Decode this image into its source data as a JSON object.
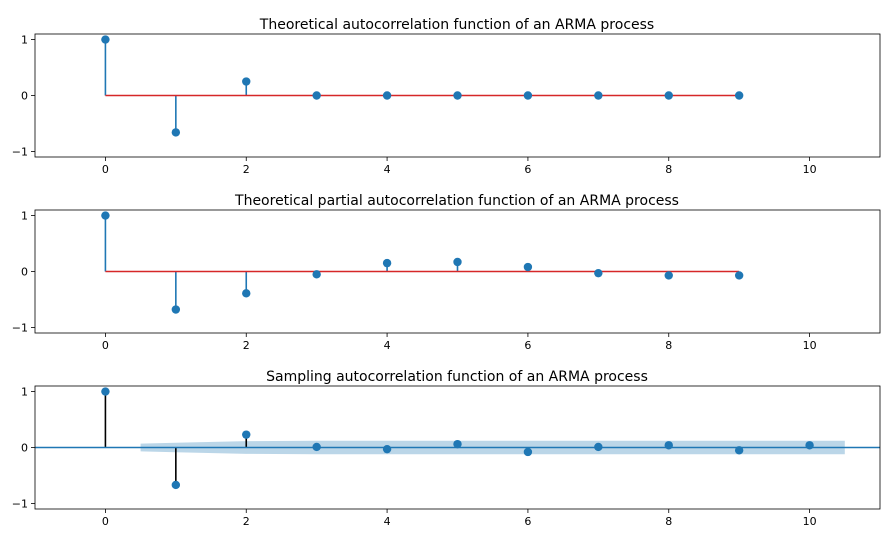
{
  "chart_data": [
    {
      "type": "stem",
      "title": "Theoretical autocorrelation function of an ARMA process",
      "xlabel": "",
      "ylabel": "",
      "xlim": [
        -1,
        11
      ],
      "ylim": [
        -1.1,
        1.1
      ],
      "xticks": [
        0,
        2,
        4,
        6,
        8,
        10
      ],
      "yticks": [
        1,
        0,
        -1
      ],
      "ytick_labels": [
        "1",
        "0",
        "−1"
      ],
      "grid": false,
      "x": [
        0,
        1,
        2,
        3,
        4,
        5,
        6,
        7,
        8,
        9
      ],
      "values": [
        1.0,
        -0.66,
        0.25,
        0.0,
        0.0,
        0.0,
        0.0,
        0.0,
        0.0,
        0.0
      ],
      "baseline": {
        "from": 0,
        "to": 9,
        "color": "#d62728"
      },
      "marker_color": "#1f77b4",
      "stem_color": "#1f77b4"
    },
    {
      "type": "stem",
      "title": "Theoretical partial autocorrelation function of an ARMA process",
      "xlabel": "",
      "ylabel": "",
      "xlim": [
        -1,
        11
      ],
      "ylim": [
        -1.1,
        1.1
      ],
      "xticks": [
        0,
        2,
        4,
        6,
        8,
        10
      ],
      "yticks": [
        1,
        0,
        -1
      ],
      "ytick_labels": [
        "1",
        "0",
        "−1"
      ],
      "grid": false,
      "x": [
        0,
        1,
        2,
        3,
        4,
        5,
        6,
        7,
        8,
        9
      ],
      "values": [
        1.0,
        -0.68,
        -0.39,
        -0.05,
        0.15,
        0.17,
        0.08,
        -0.03,
        -0.07,
        -0.07
      ],
      "baseline": {
        "from": 0,
        "to": 9,
        "color": "#d62728"
      },
      "marker_color": "#1f77b4",
      "stem_color": "#1f77b4"
    },
    {
      "type": "stem",
      "title": "Sampling autocorrelation function of an ARMA process",
      "xlabel": "",
      "ylabel": "",
      "xlim": [
        -1,
        11
      ],
      "ylim": [
        -1.1,
        1.1
      ],
      "xticks": [
        0,
        2,
        4,
        6,
        8,
        10
      ],
      "yticks": [
        1,
        0,
        -1
      ],
      "ytick_labels": [
        "1",
        "0",
        "−1"
      ],
      "grid": false,
      "x": [
        0,
        1,
        2,
        3,
        4,
        5,
        6,
        7,
        8,
        9,
        10
      ],
      "values": [
        1.0,
        -0.67,
        0.23,
        0.01,
        -0.03,
        0.06,
        -0.08,
        0.01,
        0.04,
        -0.05,
        0.04
      ],
      "baseline": {
        "from": -1,
        "to": 11,
        "color": "#1f77b4"
      },
      "confidence_band": {
        "x": [
          0.5,
          1,
          2,
          3,
          4,
          5,
          6,
          7,
          8,
          9,
          10,
          10.5
        ],
        "upper": [
          0.07,
          0.085,
          0.115,
          0.12,
          0.12,
          0.12,
          0.12,
          0.12,
          0.12,
          0.12,
          0.12,
          0.12
        ],
        "lower": [
          -0.07,
          -0.085,
          -0.115,
          -0.12,
          -0.12,
          -0.12,
          -0.12,
          -0.12,
          -0.12,
          -0.12,
          -0.12,
          -0.12
        ],
        "color": "#1f77b4"
      },
      "marker_color": "#1f77b4",
      "stem_color": "#000000"
    }
  ]
}
